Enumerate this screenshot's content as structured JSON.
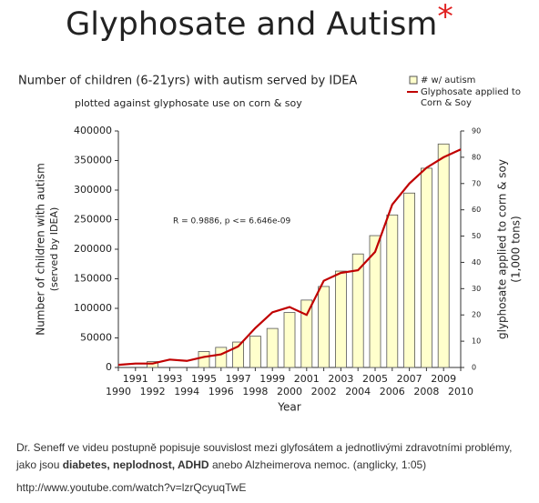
{
  "heading": {
    "text": "Glyphosate and Autism",
    "mark": "*"
  },
  "chart_data": {
    "type": "bar",
    "title": "Number of children (6-21yrs) with autism served by IDEA",
    "subtitle": "plotted against glyphosate use on corn & soy",
    "xlabel": "Year",
    "ylabel": [
      "Number of children with autism",
      "(served by IDEA)"
    ],
    "y2label": [
      "glyphosate applied to corn & soy",
      "(1,000 tons)"
    ],
    "annotation": "R = 0.9886, p <= 6.646e-09",
    "xlim": [
      1990,
      2010
    ],
    "xticks": [
      1990,
      1991,
      1992,
      1993,
      1994,
      1995,
      1996,
      1997,
      1998,
      1999,
      2000,
      2001,
      2002,
      2003,
      2004,
      2005,
      2006,
      2007,
      2008,
      2009,
      2010
    ],
    "ylim": [
      0,
      400000
    ],
    "yticks": [
      0,
      50000,
      100000,
      150000,
      200000,
      250000,
      300000,
      350000,
      400000
    ],
    "y2lim": [
      0,
      90
    ],
    "y2ticks": [
      0,
      10,
      20,
      30,
      40,
      50,
      60,
      70,
      80,
      90
    ],
    "grid": false,
    "legend": "top-right",
    "series": [
      {
        "name": "# w/ autism",
        "type": "bar",
        "color": "#ffffcc",
        "x": [
          1992,
          1995,
          1996,
          1997,
          1998,
          1999,
          2000,
          2001,
          2002,
          2003,
          2004,
          2005,
          2006,
          2007,
          2008,
          2009
        ],
        "values": [
          10000,
          27000,
          34000,
          43000,
          53000,
          66000,
          93000,
          114000,
          137000,
          163000,
          192000,
          223000,
          258000,
          295000,
          337000,
          378000
        ]
      },
      {
        "name": "Glyphosate applied to Corn & Soy",
        "type": "line",
        "color": "#c00000",
        "axis": "y2",
        "x": [
          1990,
          1991,
          1992,
          1993,
          1994,
          1995,
          1996,
          1997,
          1998,
          1999,
          2000,
          2001,
          2002,
          2003,
          2004,
          2005,
          2006,
          2007,
          2008,
          2009,
          2010
        ],
        "values": [
          1,
          1.5,
          1.5,
          3,
          2.5,
          4,
          5,
          8,
          15,
          21,
          23,
          20,
          33,
          36,
          37,
          44,
          62,
          70,
          76,
          80,
          83
        ]
      }
    ]
  },
  "caption": {
    "before": "Dr. Seneff  ve videu postupně popisuje souvislost mezi glyfosátem a jednotlivými zdravotními problémy, jako jsou ",
    "bold": "diabetes, neplodnost, ADHD",
    "after": " anebo Alzheimerova nemoc. (anglicky, 1:05)"
  },
  "url": "http://www.youtube.com/watch?v=lzrQcyuqTwE"
}
